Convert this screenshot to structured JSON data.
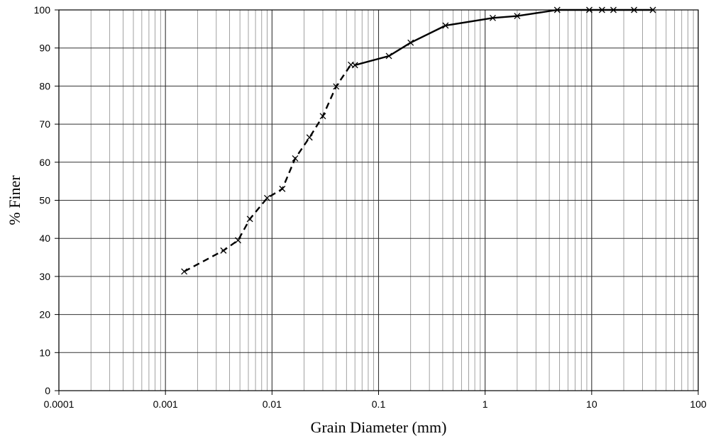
{
  "chart_data": {
    "type": "scatter",
    "xlabel": "Grain Diameter (mm)",
    "ylabel": "% Finer",
    "x_scale": "log",
    "xlim": [
      0.0001,
      100
    ],
    "ylim": [
      0,
      100
    ],
    "grid": "on",
    "x_ticks": [
      "0.0001",
      "0.001",
      "0.01",
      "0.1",
      "1",
      "10",
      "100"
    ],
    "y_ticks": [
      "0",
      "10",
      "20",
      "30",
      "40",
      "50",
      "60",
      "70",
      "80",
      "90",
      "100"
    ],
    "series": [
      {
        "line_style": "dashed",
        "marker": "x",
        "x": [
          0.0015,
          0.0035,
          0.0048,
          0.0062,
          0.009,
          0.0125,
          0.0165,
          0.0225,
          0.03,
          0.04,
          0.055
        ],
        "y": [
          31.3,
          36.8,
          39.5,
          45.1,
          50.6,
          53,
          61,
          66.5,
          72.1,
          79.9,
          85.6
        ]
      },
      {
        "line_style": "solid",
        "marker": "x",
        "x": [
          0.06,
          0.125,
          0.2,
          0.425,
          1.18,
          2,
          4.75,
          9.5,
          12.5,
          16,
          25,
          37.5
        ],
        "y": [
          85.5,
          87.9,
          91.4,
          95.9,
          97.9,
          98.4,
          100,
          100,
          100,
          100,
          100,
          100
        ]
      }
    ]
  }
}
